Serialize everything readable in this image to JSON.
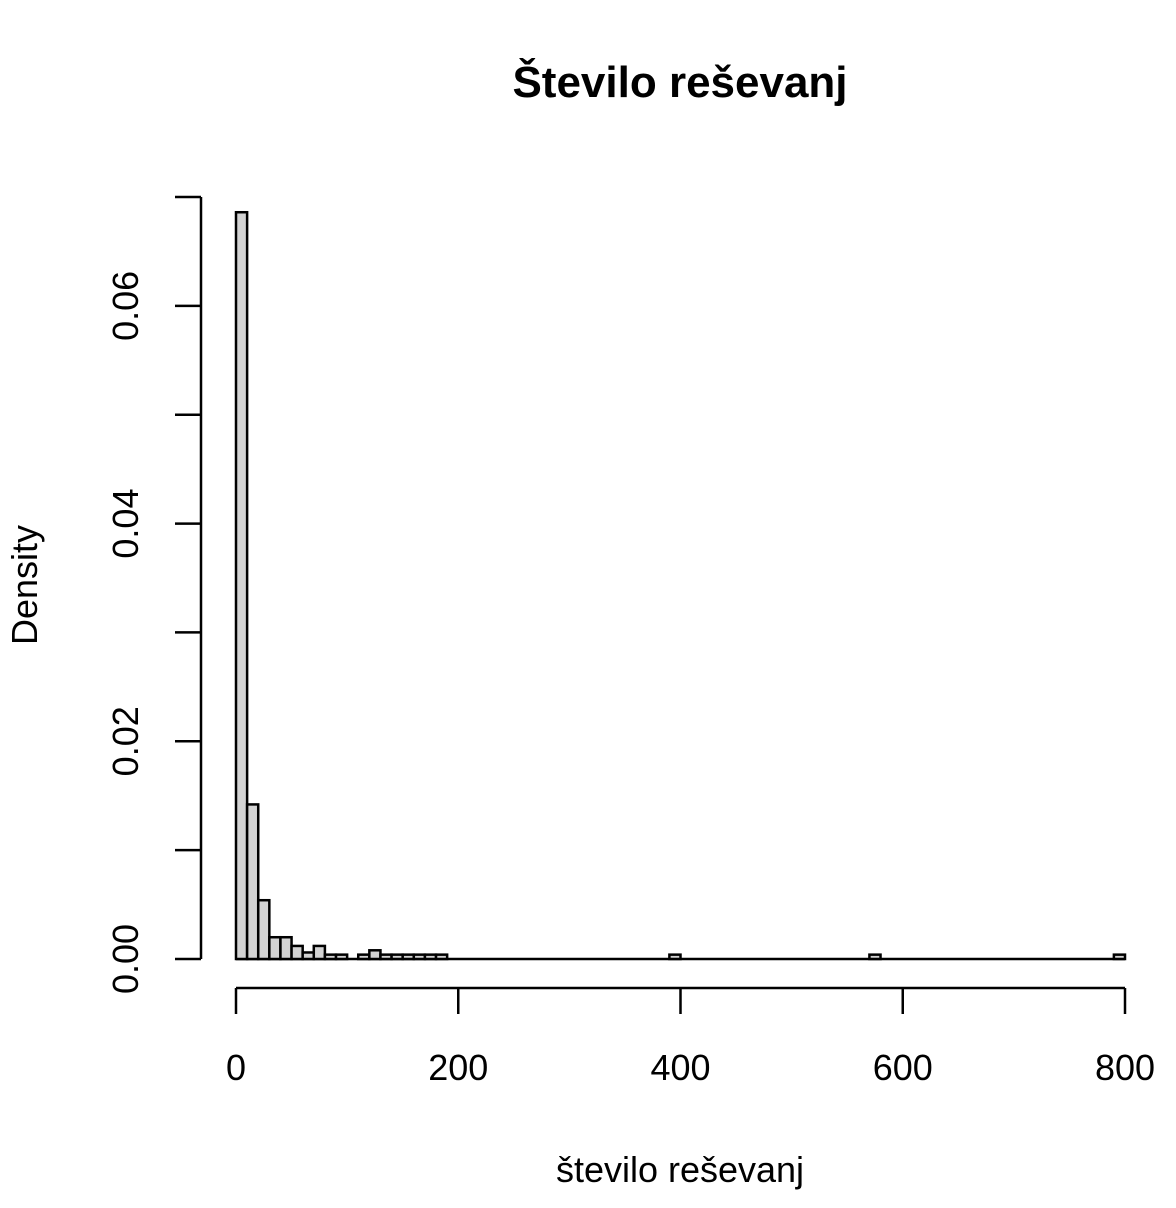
{
  "chart_data": {
    "type": "bar",
    "subtype": "histogram",
    "title": "Število reševanj",
    "xlabel": "število reševanj",
    "ylabel": "Density",
    "xlim": [
      0,
      800
    ],
    "ylim": [
      0,
      0.07
    ],
    "x_ticks": [
      0,
      200,
      400,
      600,
      800
    ],
    "x_tick_labels": [
      "0",
      "200",
      "400",
      "600",
      "800"
    ],
    "y_ticks": [
      0.0,
      0.01,
      0.02,
      0.03,
      0.04,
      0.05,
      0.06,
      0.07
    ],
    "y_tick_labels": [
      "0.00",
      "",
      "0.02",
      "",
      "0.04",
      "",
      "0.06",
      ""
    ],
    "bin_width": 10,
    "bins": [
      {
        "x0": 0,
        "x1": 10,
        "density": 0.0686
      },
      {
        "x0": 10,
        "x1": 20,
        "density": 0.0142
      },
      {
        "x0": 20,
        "x1": 30,
        "density": 0.0054
      },
      {
        "x0": 30,
        "x1": 40,
        "density": 0.002
      },
      {
        "x0": 40,
        "x1": 50,
        "density": 0.002
      },
      {
        "x0": 50,
        "x1": 60,
        "density": 0.0012
      },
      {
        "x0": 60,
        "x1": 70,
        "density": 0.0006
      },
      {
        "x0": 70,
        "x1": 80,
        "density": 0.0012
      },
      {
        "x0": 80,
        "x1": 90,
        "density": 0.0004
      },
      {
        "x0": 90,
        "x1": 100,
        "density": 0.0004
      },
      {
        "x0": 110,
        "x1": 120,
        "density": 0.0004
      },
      {
        "x0": 120,
        "x1": 130,
        "density": 0.0008
      },
      {
        "x0": 130,
        "x1": 140,
        "density": 0.0004
      },
      {
        "x0": 140,
        "x1": 150,
        "density": 0.0004
      },
      {
        "x0": 150,
        "x1": 160,
        "density": 0.0004
      },
      {
        "x0": 160,
        "x1": 170,
        "density": 0.0004
      },
      {
        "x0": 170,
        "x1": 180,
        "density": 0.0004
      },
      {
        "x0": 180,
        "x1": 190,
        "density": 0.0004
      },
      {
        "x0": 390,
        "x1": 400,
        "density": 0.0004
      },
      {
        "x0": 570,
        "x1": 580,
        "density": 0.0004
      },
      {
        "x0": 790,
        "x1": 800,
        "density": 0.0004
      }
    ],
    "bar_color": "#d3d3d3",
    "edge_color": "#000000",
    "grid": false
  }
}
